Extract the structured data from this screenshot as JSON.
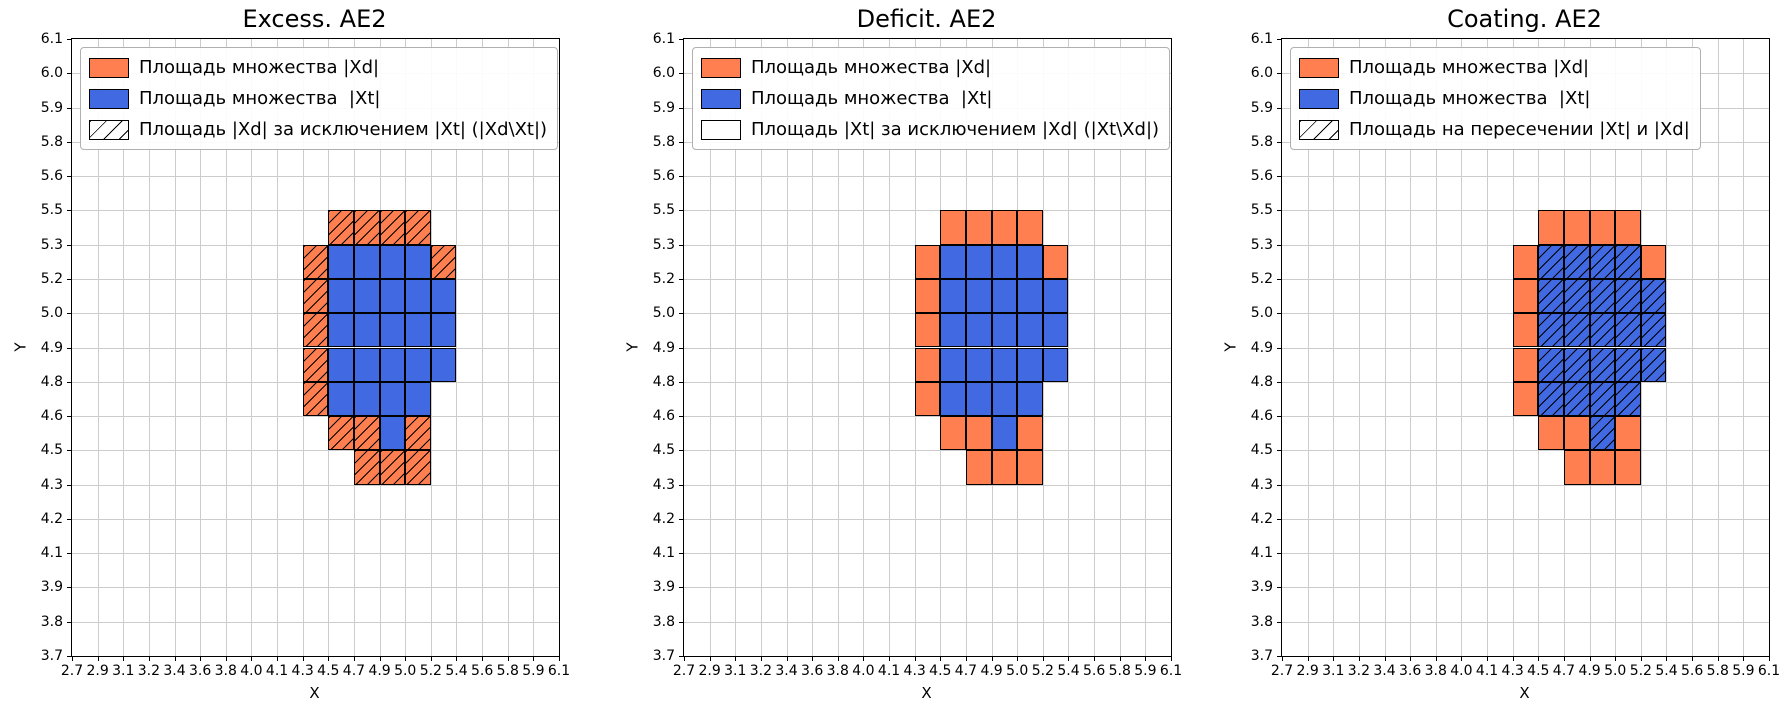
{
  "figure": {
    "background": "#ffffff",
    "x_axis_label": "X",
    "y_axis_label": "Y",
    "x_tick_labels": [
      "2.7",
      "2.9",
      "3.1",
      "3.2",
      "3.4",
      "3.6",
      "3.8",
      "4.0",
      "4.1",
      "4.3",
      "4.5",
      "4.7",
      "4.9",
      "5.0",
      "5.2",
      "5.4",
      "5.6",
      "5.8",
      "5.9",
      "6.1"
    ],
    "y_tick_labels": [
      "6.1",
      "6.0",
      "5.9",
      "5.8",
      "5.6",
      "5.5",
      "5.3",
      "5.2",
      "5.0",
      "4.9",
      "4.8",
      "4.6",
      "4.5",
      "4.3",
      "4.2",
      "4.1",
      "3.9",
      "3.8",
      "3.7"
    ],
    "grid_color": "#cccccc",
    "colors": {
      "xd_fill": "#ff7f50",
      "xt_fill": "#4169e1",
      "cell_edge": "#000000",
      "hatch": "#000000"
    },
    "cells": {
      "xd_only": [
        [
          10,
          5
        ],
        [
          11,
          5
        ],
        [
          12,
          5
        ],
        [
          13,
          5
        ],
        [
          9,
          6
        ],
        [
          14,
          6
        ],
        [
          9,
          7
        ],
        [
          9,
          8
        ],
        [
          9,
          9
        ],
        [
          9,
          10
        ],
        [
          10,
          11
        ],
        [
          11,
          11
        ],
        [
          13,
          11
        ],
        [
          11,
          12
        ],
        [
          12,
          12
        ],
        [
          13,
          12
        ]
      ],
      "xt": [
        [
          10,
          6
        ],
        [
          11,
          6
        ],
        [
          12,
          6
        ],
        [
          13,
          6
        ],
        [
          10,
          7
        ],
        [
          11,
          7
        ],
        [
          12,
          7
        ],
        [
          13,
          7
        ],
        [
          14,
          7
        ],
        [
          10,
          8
        ],
        [
          11,
          8
        ],
        [
          12,
          8
        ],
        [
          13,
          8
        ],
        [
          14,
          8
        ],
        [
          10,
          9
        ],
        [
          11,
          9
        ],
        [
          12,
          9
        ],
        [
          13,
          9
        ],
        [
          14,
          9
        ],
        [
          10,
          10
        ],
        [
          11,
          10
        ],
        [
          12,
          10
        ],
        [
          13,
          10
        ],
        [
          12,
          11
        ]
      ]
    }
  },
  "plots": [
    {
      "title": "Excess. AE2",
      "hatch_target": "xd_only",
      "legend": [
        {
          "swatch": "xd",
          "label": "Площадь множества |Xd|"
        },
        {
          "swatch": "xt",
          "label": "Площадь множества  |Xt|"
        },
        {
          "swatch": "hatch",
          "label": "Площадь |Xd| за исключением |Xt| (|Xd\\Xt|)"
        }
      ]
    },
    {
      "title": "Deficit. AE2",
      "hatch_target": "none",
      "legend": [
        {
          "swatch": "xd",
          "label": "Площадь множества |Xd|"
        },
        {
          "swatch": "xt",
          "label": "Площадь множества  |Xt|"
        },
        {
          "swatch": "plain",
          "label": "Площадь |Xt| за исключением |Xd| (|Xt\\Xd|)"
        }
      ]
    },
    {
      "title": "Coating. AE2",
      "hatch_target": "xt",
      "legend": [
        {
          "swatch": "xd",
          "label": "Площадь множества |Xd|"
        },
        {
          "swatch": "xt",
          "label": "Площадь множества  |Xt|"
        },
        {
          "swatch": "hatch",
          "label": "Площадь на пересечении |Xt| и |Xd|"
        }
      ]
    }
  ],
  "chart_data": [
    {
      "type": "heatmap",
      "title": "Excess. AE2",
      "xlabel": "X",
      "ylabel": "Y",
      "x_tick_labels": [
        "2.7",
        "2.9",
        "3.1",
        "3.2",
        "3.4",
        "3.6",
        "3.8",
        "4.0",
        "4.1",
        "4.3",
        "4.5",
        "4.7",
        "4.9",
        "5.0",
        "5.2",
        "5.4",
        "5.6",
        "5.8",
        "5.9",
        "6.1"
      ],
      "y_tick_labels_top_to_bottom": [
        "6.1",
        "6.0",
        "5.9",
        "5.8",
        "5.6",
        "5.5",
        "5.3",
        "5.2",
        "5.0",
        "4.9",
        "4.8",
        "4.6",
        "4.5",
        "4.3",
        "4.2",
        "4.1",
        "3.9",
        "3.8",
        "3.7"
      ],
      "grid": true,
      "legend_position": "upper left",
      "legend_entries": [
        {
          "label": "Площадь множества |Xd|",
          "style": "coral filled cell"
        },
        {
          "label": "Площадь множества  |Xt|",
          "style": "royalblue filled cell"
        },
        {
          "label": "Площадь |Xd| за исключением |Xt| (|Xd\\Xt|)",
          "style": "white cell with '/' hatch"
        }
      ],
      "cell_coords_note": "cells are [x_tick_index, y_tick_index_from_top]; a cell spans tick i to i+1 on each axis",
      "series": [
        {
          "name": "Xd minus Xt (coral, '/' hatched)",
          "cells": [
            [
              10,
              5
            ],
            [
              11,
              5
            ],
            [
              12,
              5
            ],
            [
              13,
              5
            ],
            [
              9,
              6
            ],
            [
              14,
              6
            ],
            [
              9,
              7
            ],
            [
              9,
              8
            ],
            [
              9,
              9
            ],
            [
              9,
              10
            ],
            [
              10,
              11
            ],
            [
              11,
              11
            ],
            [
              13,
              11
            ],
            [
              11,
              12
            ],
            [
              12,
              12
            ],
            [
              13,
              12
            ]
          ]
        },
        {
          "name": "Xt (royalblue)",
          "cells": [
            [
              10,
              6
            ],
            [
              11,
              6
            ],
            [
              12,
              6
            ],
            [
              13,
              6
            ],
            [
              10,
              7
            ],
            [
              11,
              7
            ],
            [
              12,
              7
            ],
            [
              13,
              7
            ],
            [
              14,
              7
            ],
            [
              10,
              8
            ],
            [
              11,
              8
            ],
            [
              12,
              8
            ],
            [
              13,
              8
            ],
            [
              14,
              8
            ],
            [
              10,
              9
            ],
            [
              11,
              9
            ],
            [
              12,
              9
            ],
            [
              13,
              9
            ],
            [
              14,
              9
            ],
            [
              10,
              10
            ],
            [
              11,
              10
            ],
            [
              12,
              10
            ],
            [
              13,
              10
            ],
            [
              12,
              11
            ]
          ]
        }
      ]
    },
    {
      "type": "heatmap",
      "title": "Deficit. AE2",
      "xlabel": "X",
      "ylabel": "Y",
      "x_tick_labels": [
        "2.7",
        "2.9",
        "3.1",
        "3.2",
        "3.4",
        "3.6",
        "3.8",
        "4.0",
        "4.1",
        "4.3",
        "4.5",
        "4.7",
        "4.9",
        "5.0",
        "5.2",
        "5.4",
        "5.6",
        "5.8",
        "5.9",
        "6.1"
      ],
      "y_tick_labels_top_to_bottom": [
        "6.1",
        "6.0",
        "5.9",
        "5.8",
        "5.6",
        "5.5",
        "5.3",
        "5.2",
        "5.0",
        "4.9",
        "4.8",
        "4.6",
        "4.5",
        "4.3",
        "4.2",
        "4.1",
        "3.9",
        "3.8",
        "3.7"
      ],
      "grid": true,
      "legend_position": "upper left",
      "legend_entries": [
        {
          "label": "Площадь множества |Xd|",
          "style": "coral filled cell"
        },
        {
          "label": "Площадь множества  |Xt|",
          "style": "royalblue filled cell"
        },
        {
          "label": "Площадь |Xt| за исключением |Xd| (|Xt\\Xd|)",
          "style": "white cell, no hatch shown (set is empty)"
        }
      ],
      "cell_coords_note": "cells are [x_tick_index, y_tick_index_from_top]; a cell spans tick i to i+1 on each axis",
      "series": [
        {
          "name": "Xd minus Xt (coral)",
          "cells": [
            [
              10,
              5
            ],
            [
              11,
              5
            ],
            [
              12,
              5
            ],
            [
              13,
              5
            ],
            [
              9,
              6
            ],
            [
              14,
              6
            ],
            [
              9,
              7
            ],
            [
              9,
              8
            ],
            [
              9,
              9
            ],
            [
              9,
              10
            ],
            [
              10,
              11
            ],
            [
              11,
              11
            ],
            [
              13,
              11
            ],
            [
              11,
              12
            ],
            [
              12,
              12
            ],
            [
              13,
              12
            ]
          ]
        },
        {
          "name": "Xt (royalblue)",
          "cells": [
            [
              10,
              6
            ],
            [
              11,
              6
            ],
            [
              12,
              6
            ],
            [
              13,
              6
            ],
            [
              10,
              7
            ],
            [
              11,
              7
            ],
            [
              12,
              7
            ],
            [
              13,
              7
            ],
            [
              14,
              7
            ],
            [
              10,
              8
            ],
            [
              11,
              8
            ],
            [
              12,
              8
            ],
            [
              13,
              8
            ],
            [
              14,
              8
            ],
            [
              10,
              9
            ],
            [
              11,
              9
            ],
            [
              12,
              9
            ],
            [
              13,
              9
            ],
            [
              14,
              9
            ],
            [
              10,
              10
            ],
            [
              11,
              10
            ],
            [
              12,
              10
            ],
            [
              13,
              10
            ],
            [
              12,
              11
            ]
          ]
        },
        {
          "name": "Xt minus Xd (hatched)",
          "cells": []
        }
      ]
    },
    {
      "type": "heatmap",
      "title": "Coating. AE2",
      "xlabel": "X",
      "ylabel": "Y",
      "x_tick_labels": [
        "2.7",
        "2.9",
        "3.1",
        "3.2",
        "3.4",
        "3.6",
        "3.8",
        "4.0",
        "4.1",
        "4.3",
        "4.5",
        "4.7",
        "4.9",
        "5.0",
        "5.2",
        "5.4",
        "5.6",
        "5.8",
        "5.9",
        "6.1"
      ],
      "y_tick_labels_top_to_bottom": [
        "6.1",
        "6.0",
        "5.9",
        "5.8",
        "5.6",
        "5.5",
        "5.3",
        "5.2",
        "5.0",
        "4.9",
        "4.8",
        "4.6",
        "4.5",
        "4.3",
        "4.2",
        "4.1",
        "3.9",
        "3.8",
        "3.7"
      ],
      "grid": true,
      "legend_position": "upper left",
      "legend_entries": [
        {
          "label": "Площадь множества |Xd|",
          "style": "coral filled cell"
        },
        {
          "label": "Площадь множества  |Xt|",
          "style": "royalblue filled cell"
        },
        {
          "label": "Площадь на пересечении |Xt| и |Xd|",
          "style": "'/' hatch over royalblue cells"
        }
      ],
      "cell_coords_note": "cells are [x_tick_index, y_tick_index_from_top]; a cell spans tick i to i+1 on each axis",
      "series": [
        {
          "name": "Xd minus Xt (coral)",
          "cells": [
            [
              10,
              5
            ],
            [
              11,
              5
            ],
            [
              12,
              5
            ],
            [
              13,
              5
            ],
            [
              9,
              6
            ],
            [
              14,
              6
            ],
            [
              9,
              7
            ],
            [
              9,
              8
            ],
            [
              9,
              9
            ],
            [
              9,
              10
            ],
            [
              10,
              11
            ],
            [
              11,
              11
            ],
            [
              13,
              11
            ],
            [
              11,
              12
            ],
            [
              12,
              12
            ],
            [
              13,
              12
            ]
          ]
        },
        {
          "name": "Xt intersect Xd (royalblue, '/' hatched)",
          "cells": [
            [
              10,
              6
            ],
            [
              11,
              6
            ],
            [
              12,
              6
            ],
            [
              13,
              6
            ],
            [
              10,
              7
            ],
            [
              11,
              7
            ],
            [
              12,
              7
            ],
            [
              13,
              7
            ],
            [
              14,
              7
            ],
            [
              10,
              8
            ],
            [
              11,
              8
            ],
            [
              12,
              8
            ],
            [
              13,
              8
            ],
            [
              14,
              8
            ],
            [
              10,
              9
            ],
            [
              11,
              9
            ],
            [
              12,
              9
            ],
            [
              13,
              9
            ],
            [
              14,
              9
            ],
            [
              10,
              10
            ],
            [
              11,
              10
            ],
            [
              12,
              10
            ],
            [
              13,
              10
            ],
            [
              12,
              11
            ]
          ]
        }
      ]
    }
  ]
}
